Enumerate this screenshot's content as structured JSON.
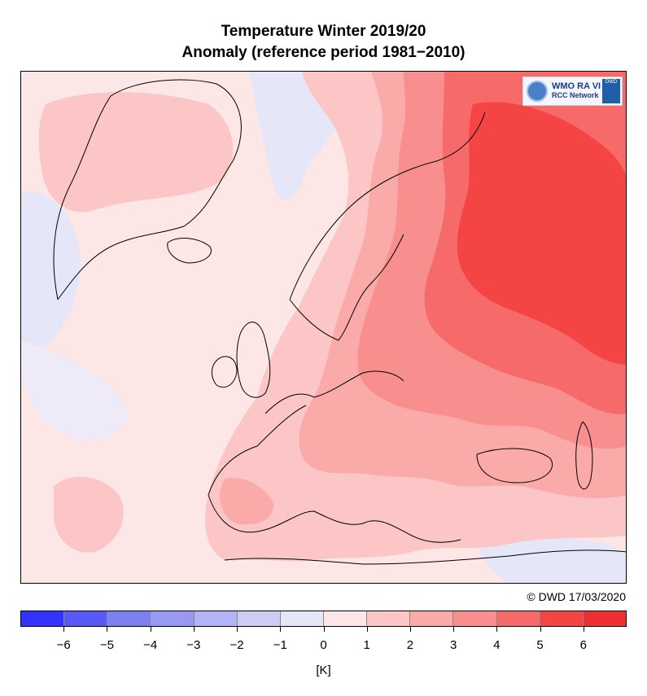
{
  "title": {
    "line1": "Temperature Winter 2019/20",
    "line2": "Anomaly (reference period 1981−2010)"
  },
  "credit": "© DWD 17/03/2020",
  "logo": {
    "line1": "WMO RA VI",
    "line2": "RCC Network",
    "dwd": "DWD"
  },
  "colorbar": {
    "unit": "[K]",
    "tick_labels": [
      "−6",
      "−5",
      "−4",
      "−3",
      "−2",
      "−1",
      "0",
      "1",
      "2",
      "3",
      "4",
      "5",
      "6"
    ],
    "colors": [
      "#3333ff",
      "#5959f7",
      "#7f7ff4",
      "#9999f5",
      "#b3b3f7",
      "#ccccf7",
      "#e6e6f9",
      "#fde6e6",
      "#fcc6c6",
      "#fbaaaa",
      "#f88e8e",
      "#f66a6a",
      "#f44444",
      "#f03030"
    ]
  },
  "map": {
    "region": "Europe",
    "palette": {
      "neg1": "#e6e6f9",
      "p0": "#fde6e6",
      "p1": "#fcc6c6",
      "p2": "#fbaaaa",
      "p3": "#f88e8e",
      "p4": "#f66a6a",
      "p5": "#f44444",
      "coast": "#000000"
    }
  }
}
